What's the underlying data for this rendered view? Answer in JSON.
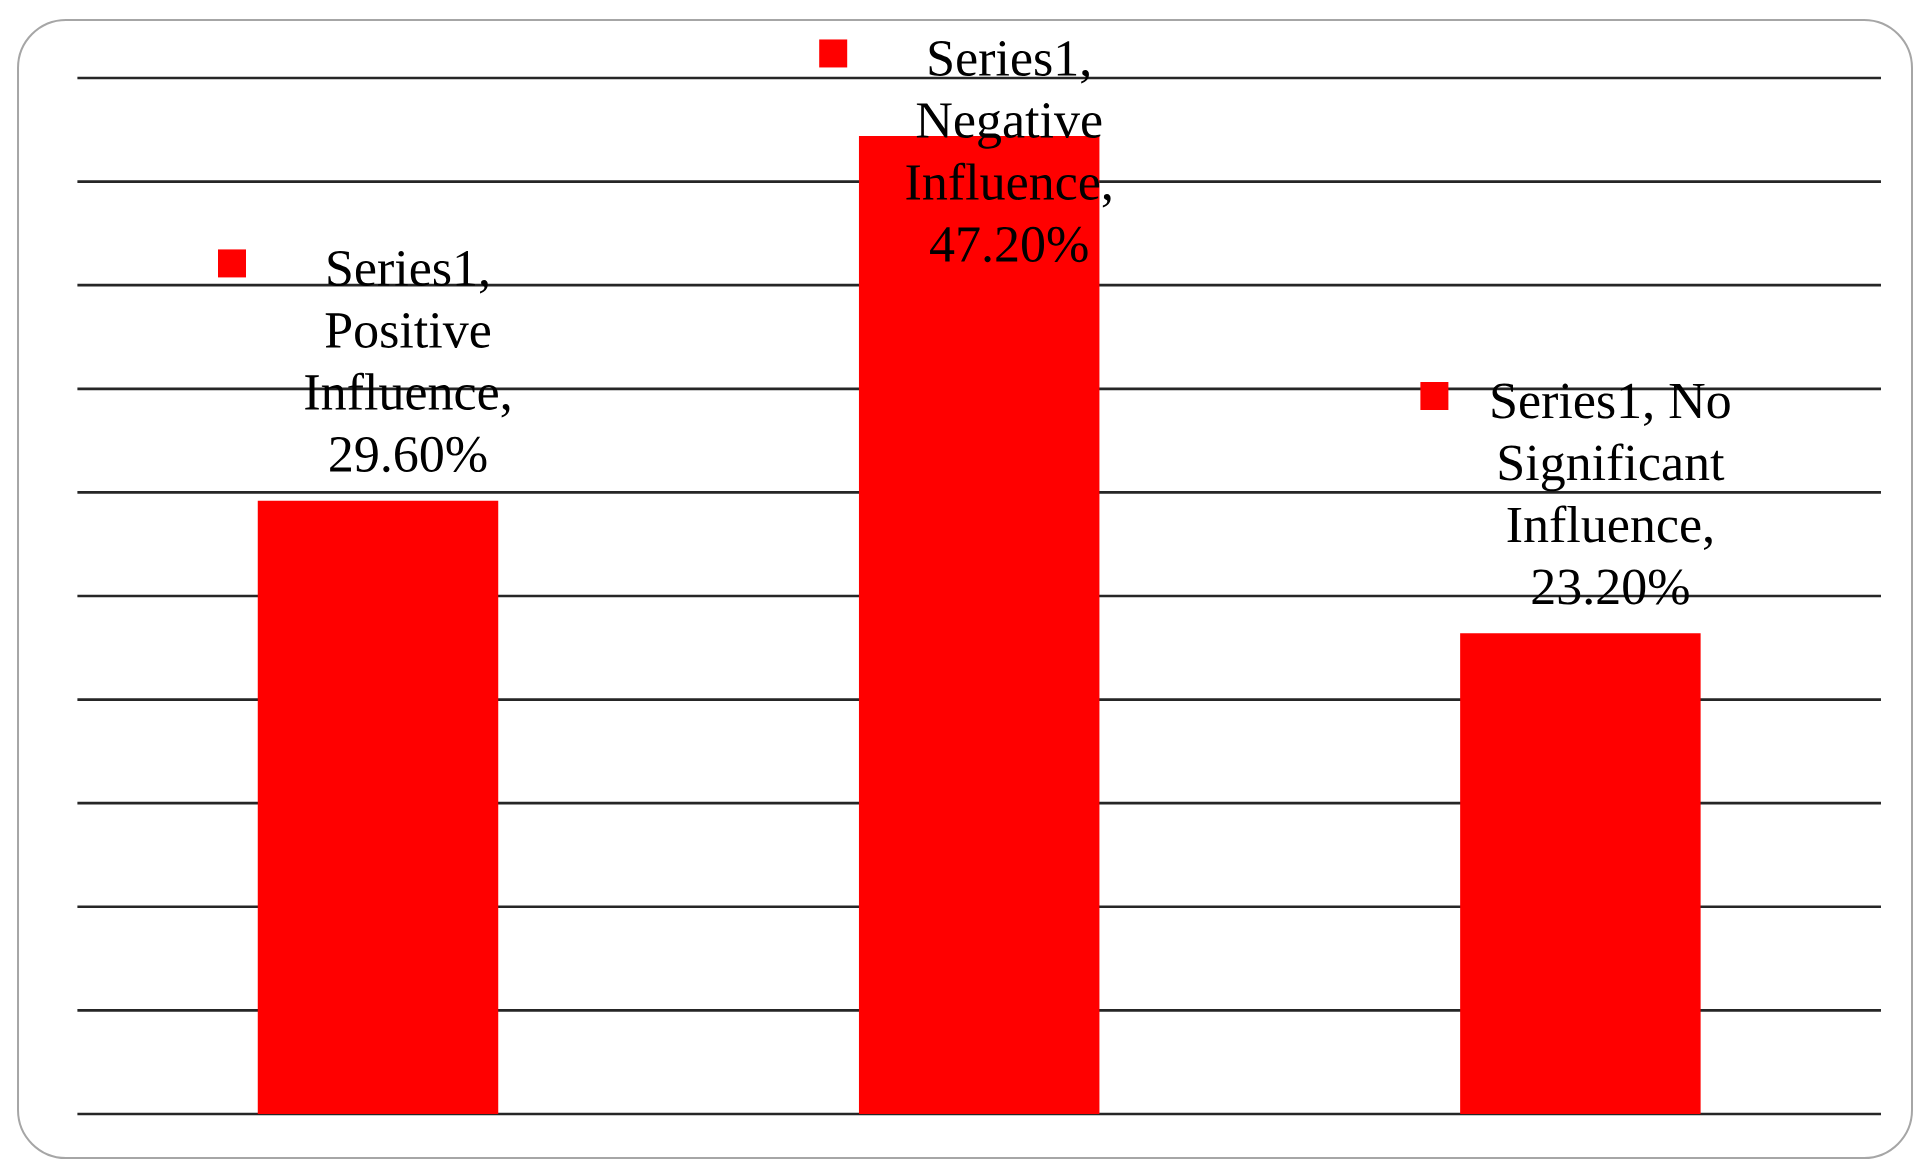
{
  "chart_data": {
    "type": "bar",
    "categories": [
      null,
      null,
      null
    ],
    "values": [
      29.6,
      47.2,
      23.2
    ],
    "color": "#ff0000",
    "value_labels": [
      "Series1, Positive Influence, 29.60%",
      "Series1, Negative Influence, 47.20%",
      "Series1, No Significant Influence, 23.20%"
    ],
    "ylim": [
      0,
      50
    ],
    "yticks": [
      0,
      5,
      10,
      15,
      20,
      25,
      30,
      35,
      40,
      45,
      50
    ],
    "grid": "y",
    "tick_labels": false
  }
}
